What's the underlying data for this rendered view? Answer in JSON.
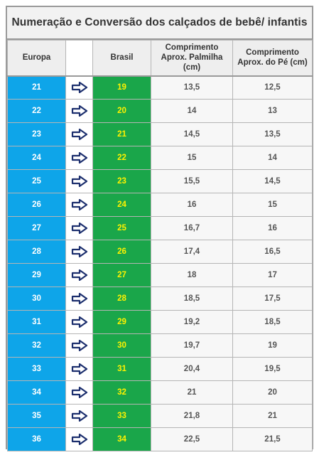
{
  "title": "Numeração e Conversão dos calçados de bebê/ infantis",
  "columns": {
    "europa": "Europa",
    "brasil": "Brasil",
    "palmilha": [
      "Comprimento",
      "Aprox. Palmilha",
      "(cm)"
    ],
    "pe": [
      "Comprimento",
      "Aprox. do Pé (cm)"
    ]
  },
  "colors": {
    "europa": "#0ea5e9",
    "brasil": "#1aa64a",
    "brasil_text": "#fff200",
    "arrow": "#1c2f6e"
  },
  "icons": {
    "arrow": "right-arrow-icon"
  },
  "rows": [
    {
      "europa": "21",
      "brasil": "19",
      "palmilha": "13,5",
      "pe": "12,5"
    },
    {
      "europa": "22",
      "brasil": "20",
      "palmilha": "14",
      "pe": "13"
    },
    {
      "europa": "23",
      "brasil": "21",
      "palmilha": "14,5",
      "pe": "13,5"
    },
    {
      "europa": "24",
      "brasil": "22",
      "palmilha": "15",
      "pe": "14"
    },
    {
      "europa": "25",
      "brasil": "23",
      "palmilha": "15,5",
      "pe": "14,5"
    },
    {
      "europa": "26",
      "brasil": "24",
      "palmilha": "16",
      "pe": "15"
    },
    {
      "europa": "27",
      "brasil": "25",
      "palmilha": "16,7",
      "pe": "16"
    },
    {
      "europa": "28",
      "brasil": "26",
      "palmilha": "17,4",
      "pe": "16,5"
    },
    {
      "europa": "29",
      "brasil": "27",
      "palmilha": "18",
      "pe": "17"
    },
    {
      "europa": "30",
      "brasil": "28",
      "palmilha": "18,5",
      "pe": "17,5"
    },
    {
      "europa": "31",
      "brasil": "29",
      "palmilha": "19,2",
      "pe": "18,5"
    },
    {
      "europa": "32",
      "brasil": "30",
      "palmilha": "19,7",
      "pe": "19"
    },
    {
      "europa": "33",
      "brasil": "31",
      "palmilha": "20,4",
      "pe": "19,5"
    },
    {
      "europa": "34",
      "brasil": "32",
      "palmilha": "21",
      "pe": "20"
    },
    {
      "europa": "35",
      "brasil": "33",
      "palmilha": "21,8",
      "pe": "21"
    },
    {
      "europa": "36",
      "brasil": "34",
      "palmilha": "22,5",
      "pe": "21,5"
    }
  ]
}
